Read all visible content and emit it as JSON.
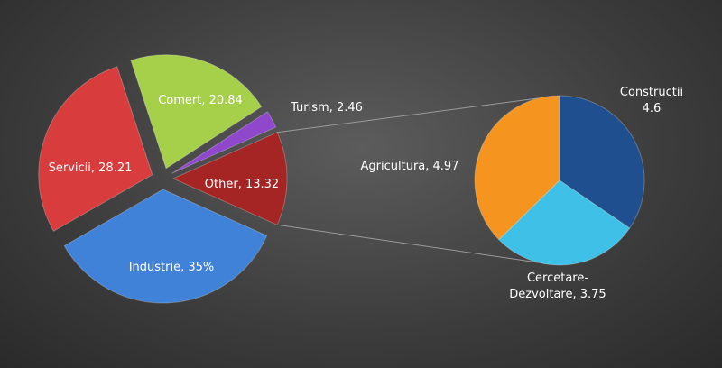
{
  "chart_data": [
    {
      "type": "pie",
      "values": [
        13.32,
        35,
        28.21,
        20.84,
        2.46
      ],
      "value_labels": [
        "Other, 13.32",
        "Industrie, 35%",
        "Servicii, 28.21",
        "Comert, 20.84",
        "Turism, 2.46"
      ],
      "colors": [
        "#a52424",
        "#3f82d8",
        "#d93c3c",
        "#a6cf4a",
        "#8f48cc"
      ]
    },
    {
      "type": "pie",
      "values": [
        4.6,
        3.75,
        4.97
      ],
      "value_labels": [
        "Constructii 4.6",
        "Cercetare-Dezvoltare, 3.75",
        "Agricultura, 4.97"
      ],
      "colors": [
        "#1f4f8f",
        "#3fc0e6",
        "#f5941f"
      ]
    }
  ]
}
